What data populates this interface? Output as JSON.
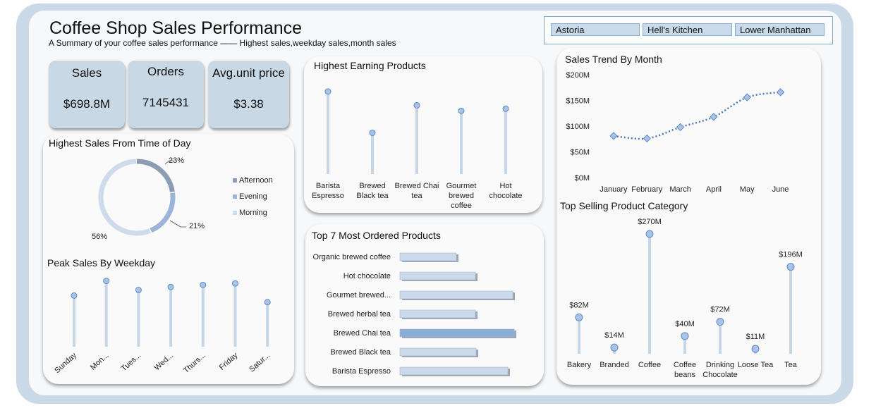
{
  "header": {
    "title": "Coffee Shop Sales Performance",
    "subtitle": "A Summary of your coffee sales performance —— Highest sales,weekday sales,month sales"
  },
  "slicer": {
    "items": [
      "Astoria",
      "Hell's Kitchen",
      "Lower Manhattan"
    ]
  },
  "kpis": {
    "sales": {
      "label": "Sales",
      "value": "$698.8M"
    },
    "orders": {
      "label": "Orders",
      "value": "7145431"
    },
    "avg_price": {
      "label": "Avg.unit price",
      "value": "$3.38"
    }
  },
  "colors": {
    "accent": "#8aadd8",
    "stem": "#c5d6e6",
    "donut_afternoon": "#8c9db3",
    "donut_evening": "#9db4da",
    "donut_morning": "#cddbea"
  },
  "chart_data": [
    {
      "id": "time_of_day",
      "type": "pie",
      "title": "Highest Sales From Time of Day",
      "categories": [
        "Afternoon",
        "Evening",
        "Morning"
      ],
      "values": [
        23,
        21,
        56
      ],
      "labels": [
        "23%",
        "21%",
        "56%"
      ],
      "legend": "right"
    },
    {
      "id": "weekday",
      "type": "scatter",
      "title": "Peak Sales By Weekday",
      "categories": [
        "Sunday",
        "Mon...",
        "Tues...",
        "Wed...",
        "Thurs...",
        "Friday",
        "Satur..."
      ],
      "values": [
        101,
        130,
        112,
        118,
        122,
        125,
        88
      ],
      "ylim": [
        0,
        135
      ]
    },
    {
      "id": "highest_earning",
      "type": "scatter",
      "title": "Highest Earning Products",
      "categories": [
        [
          "Barista",
          "Espresso"
        ],
        [
          "Brewed",
          "Black tea"
        ],
        [
          "Brewed Chai",
          "tea"
        ],
        [
          "Gourmet",
          "brewed",
          "coffee"
        ],
        [
          "Hot",
          "chocolate"
        ]
      ],
      "values": [
        120,
        60,
        100,
        92,
        95
      ],
      "ylim": [
        0,
        125
      ]
    },
    {
      "id": "most_ordered",
      "type": "bar",
      "title": "Top 7 Most Ordered Products",
      "categories": [
        "Organic brewed coffee",
        "Hot chocolate",
        "Gourmet brewed...",
        "Brewed herbal tea",
        "Brewed Chai tea",
        "Brewed Black tea",
        "Barista Espresso"
      ],
      "values": [
        80,
        107,
        160,
        107,
        162,
        108,
        153
      ],
      "highlight": "Brewed Chai tea"
    },
    {
      "id": "monthly_trend",
      "type": "line",
      "title": "Sales Trend By Month",
      "x": [
        "January",
        "February",
        "March",
        "April",
        "May",
        "June"
      ],
      "y": [
        81,
        76,
        98,
        118,
        156,
        166
      ],
      "yticks": [
        "$0M",
        "$50M",
        "$100M",
        "$150M",
        "$200M"
      ],
      "ylim": [
        0,
        200
      ]
    },
    {
      "id": "product_category",
      "type": "scatter",
      "title": "Top Selling Product Category",
      "categories": [
        [
          "Bakery"
        ],
        [
          "Branded"
        ],
        [
          "Coffee"
        ],
        [
          "Coffee",
          "beans"
        ],
        [
          "Drinking",
          "Chocolate"
        ],
        [
          "Loose Tea"
        ],
        [
          "Tea"
        ]
      ],
      "values": [
        82,
        14,
        270,
        40,
        72,
        11,
        196
      ],
      "labels": [
        "$82M",
        "$14M",
        "$270M",
        "$40M",
        "$72M",
        "$11M",
        "$196M"
      ],
      "ylim": [
        0,
        270
      ]
    }
  ]
}
